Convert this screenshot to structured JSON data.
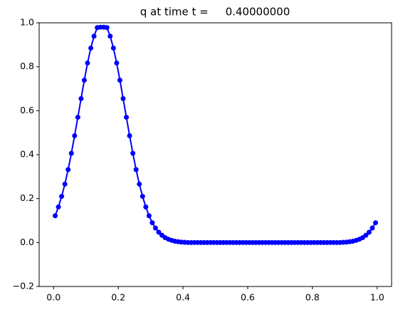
{
  "chart_data": {
    "type": "line",
    "title": "q at time t =     0.40000000",
    "x": [
      0.005,
      0.015,
      0.025,
      0.035,
      0.045,
      0.055,
      0.065,
      0.075,
      0.085,
      0.095,
      0.105,
      0.115,
      0.125,
      0.135,
      0.145,
      0.155,
      0.165,
      0.175,
      0.185,
      0.195,
      0.205,
      0.215,
      0.225,
      0.235,
      0.245,
      0.255,
      0.265,
      0.275,
      0.285,
      0.295,
      0.305,
      0.315,
      0.325,
      0.335,
      0.345,
      0.355,
      0.365,
      0.375,
      0.385,
      0.395,
      0.405,
      0.415,
      0.425,
      0.435,
      0.445,
      0.455,
      0.465,
      0.475,
      0.485,
      0.495,
      0.505,
      0.515,
      0.525,
      0.535,
      0.545,
      0.555,
      0.565,
      0.575,
      0.585,
      0.595,
      0.605,
      0.615,
      0.625,
      0.635,
      0.645,
      0.655,
      0.665,
      0.675,
      0.685,
      0.695,
      0.705,
      0.715,
      0.725,
      0.735,
      0.745,
      0.755,
      0.765,
      0.775,
      0.785,
      0.795,
      0.805,
      0.815,
      0.825,
      0.835,
      0.845,
      0.855,
      0.865,
      0.875,
      0.885,
      0.895,
      0.905,
      0.915,
      0.925,
      0.935,
      0.945,
      0.955,
      0.965,
      0.975,
      0.985,
      0.995
    ],
    "y": [
      0.122,
      0.162,
      0.21,
      0.266,
      0.332,
      0.406,
      0.486,
      0.57,
      0.655,
      0.739,
      0.817,
      0.885,
      0.939,
      0.978,
      0.98,
      0.98,
      0.978,
      0.939,
      0.885,
      0.817,
      0.739,
      0.655,
      0.57,
      0.486,
      0.406,
      0.332,
      0.266,
      0.21,
      0.162,
      0.122,
      0.09,
      0.066,
      0.047,
      0.033,
      0.022,
      0.015,
      0.01,
      0.006,
      0.004,
      0.002,
      0.001,
      0,
      0,
      0,
      0,
      0,
      0,
      0,
      0,
      0,
      0,
      0,
      0,
      0,
      0,
      0,
      0,
      0,
      0,
      0,
      0,
      0,
      0,
      0,
      0,
      0,
      0,
      0,
      0,
      0,
      0,
      0,
      0,
      0,
      0,
      0,
      0,
      0,
      0,
      0,
      0,
      0,
      0,
      0,
      0,
      0,
      0,
      0,
      0,
      0.001,
      0.002,
      0.004,
      0.006,
      0.01,
      0.015,
      0.022,
      0.033,
      0.047,
      0.066,
      0.09
    ],
    "color": "#0000ff",
    "xlim": [
      -0.0445,
      1.0445
    ],
    "ylim": [
      -0.2,
      1.0
    ],
    "xticks": [
      {
        "value": 0,
        "label": "0.0"
      },
      {
        "value": 0.2,
        "label": "0.2"
      },
      {
        "value": 0.4,
        "label": "0.4"
      },
      {
        "value": 0.6,
        "label": "0.6"
      },
      {
        "value": 0.8,
        "label": "0.8"
      },
      {
        "value": 1.0,
        "label": "1.0"
      }
    ],
    "yticks": [
      {
        "value": -0.2,
        "label": "−0.2"
      },
      {
        "value": 0,
        "label": "0.0"
      },
      {
        "value": 0.2,
        "label": "0.2"
      },
      {
        "value": 0.4,
        "label": "0.4"
      },
      {
        "value": 0.6,
        "label": "0.6"
      },
      {
        "value": 0.8,
        "label": "0.8"
      },
      {
        "value": 1.0,
        "label": "1.0"
      }
    ]
  }
}
